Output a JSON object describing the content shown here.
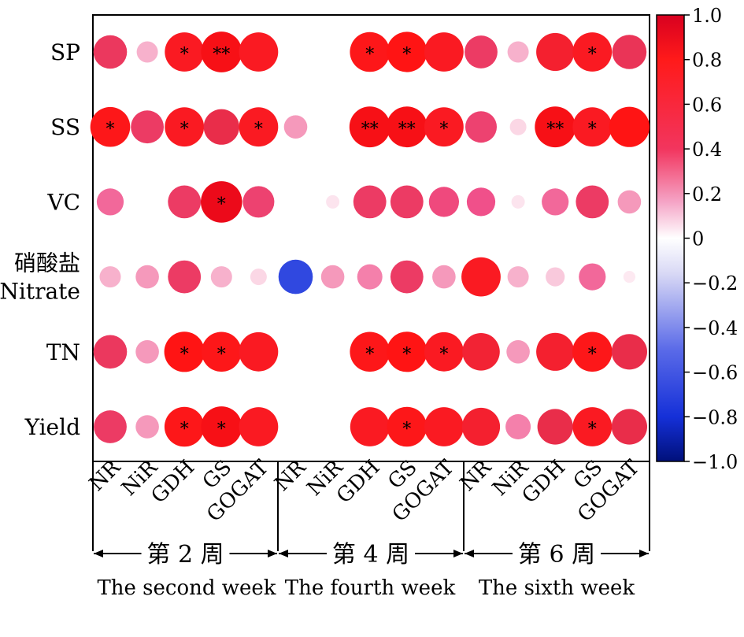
{
  "chart_data": {
    "type": "heatmap",
    "rows": [
      "SP",
      "SS",
      "VC",
      "硝酸盐|Nitrate",
      "TN",
      "Yield"
    ],
    "columns": [
      "NR",
      "NiR",
      "GDH",
      "GS",
      "GOGAT"
    ],
    "groups": [
      {
        "cn": "第 2 周",
        "en": "The second week"
      },
      {
        "cn": "第 4 周",
        "en": "The fourth week"
      },
      {
        "cn": "第 6 周",
        "en": "The sixth week"
      }
    ],
    "values": [
      [
        0.62,
        0.25,
        0.85,
        0.92,
        0.85,
        null,
        null,
        0.88,
        0.9,
        0.85,
        0.6,
        0.25,
        0.8,
        0.85,
        0.65
      ],
      [
        0.88,
        0.6,
        0.85,
        0.7,
        0.85,
        0.3,
        null,
        0.92,
        0.92,
        0.85,
        0.55,
        0.15,
        0.92,
        0.85,
        0.9
      ],
      [
        0.4,
        null,
        0.6,
        0.95,
        0.55,
        null,
        0.1,
        0.6,
        0.6,
        0.5,
        0.45,
        0.1,
        0.4,
        0.6,
        0.3
      ],
      [
        0.25,
        0.3,
        0.6,
        0.25,
        0.15,
        -0.65,
        0.3,
        0.35,
        0.6,
        0.3,
        0.85,
        0.25,
        0.2,
        0.4,
        0.08
      ],
      [
        0.62,
        0.3,
        0.9,
        0.88,
        0.85,
        null,
        null,
        0.88,
        0.9,
        0.85,
        0.78,
        0.3,
        0.8,
        0.88,
        0.7
      ],
      [
        0.6,
        0.3,
        0.88,
        0.92,
        0.85,
        null,
        null,
        0.85,
        0.88,
        0.85,
        0.8,
        0.35,
        0.7,
        0.85,
        0.7
      ]
    ],
    "significance": [
      [
        "",
        "",
        "*",
        "**",
        "",
        "",
        "",
        "*",
        "*",
        "",
        "",
        "",
        "",
        "*",
        ""
      ],
      [
        "*",
        "",
        "*",
        "",
        "*",
        "",
        "",
        "**",
        "**",
        "*",
        "",
        "",
        "**",
        "*",
        ""
      ],
      [
        "",
        "",
        "",
        "*",
        "",
        "",
        "",
        "",
        "",
        "",
        "",
        "",
        "",
        "",
        ""
      ],
      [
        "",
        "",
        "",
        "",
        "",
        "",
        "",
        "",
        "",
        "",
        "",
        "",
        "",
        "",
        ""
      ],
      [
        "",
        "",
        "*",
        "*",
        "",
        "",
        "",
        "*",
        "*",
        "*",
        "",
        "",
        "",
        "*",
        ""
      ],
      [
        "",
        "",
        "*",
        "*",
        "",
        "",
        "",
        "",
        "*",
        "",
        "",
        "",
        "",
        "*",
        ""
      ]
    ],
    "colorbar": {
      "ticks": [
        "1.0",
        "0.8",
        "0.6",
        "0.4",
        "0.2",
        "0",
        "−0.2",
        "−0.4",
        "−0.6",
        "−0.8",
        "−1.0"
      ],
      "range": [
        -1,
        1
      ],
      "colors": {
        "pos": "#ff0000",
        "neg": "#0000ff",
        "mid": "#ffffff",
        "posDark": "#b0002a",
        "negDark": "#00008b"
      }
    }
  }
}
